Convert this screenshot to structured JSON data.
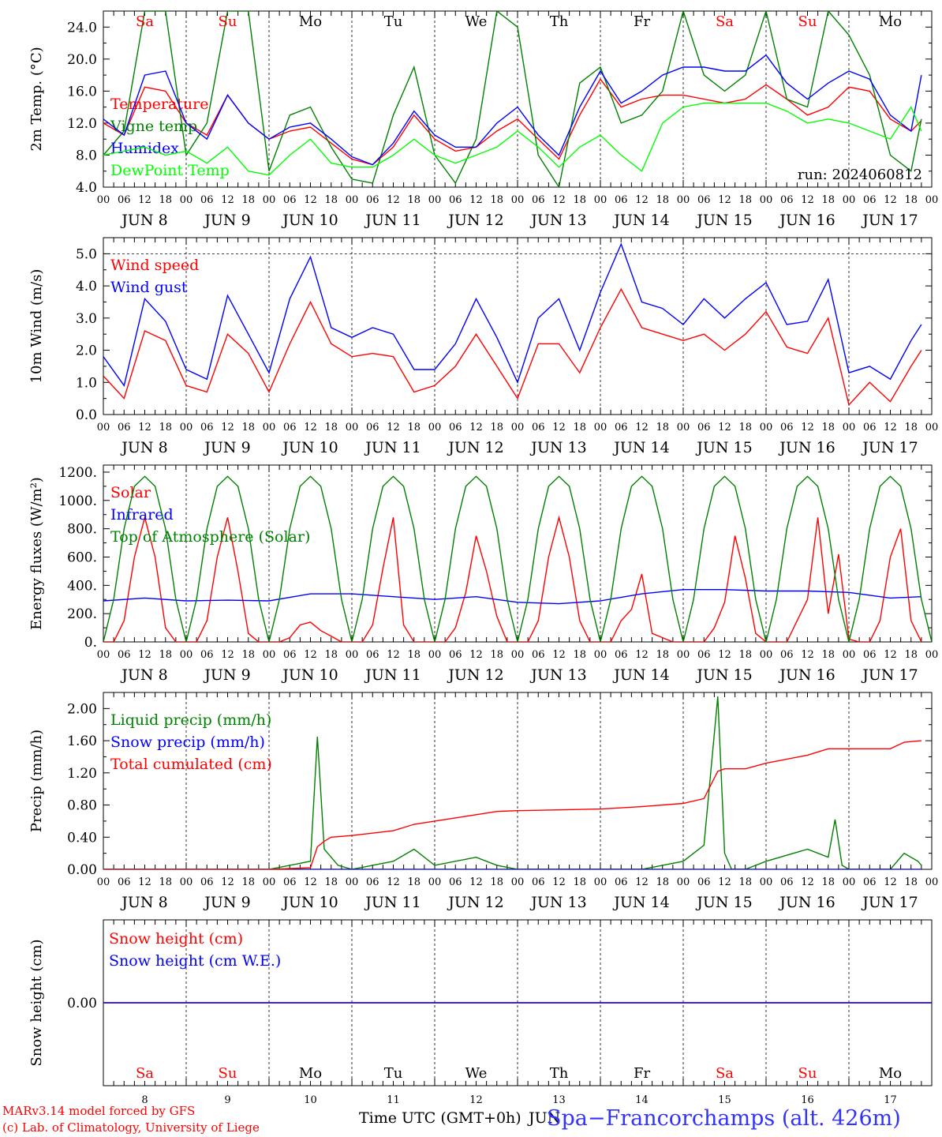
{
  "chart_data": [
    {
      "type": "line",
      "ylabel": "2m Temp. (°C)",
      "ylim": [
        4,
        26
      ],
      "yticks": [
        "4.0",
        "8.0",
        "12.0",
        "16.0",
        "20.0",
        "24.0"
      ],
      "run_label": "run: 2024060812",
      "series": [
        {
          "name": "Temperature",
          "color": "#ff0000",
          "x": [
            0,
            6,
            12,
            18,
            24,
            30,
            36,
            42,
            48,
            54,
            60,
            66,
            72,
            78,
            84,
            90,
            96,
            102,
            108,
            114,
            120,
            126,
            132,
            138,
            144,
            150,
            156,
            162,
            168,
            174,
            180,
            186,
            192,
            198,
            204,
            210,
            216,
            222,
            228,
            234,
            237
          ],
          "values": [
            12,
            10.5,
            16.5,
            16,
            12,
            10.5,
            15.5,
            12,
            10,
            11,
            11.5,
            9.5,
            7.5,
            6.8,
            9,
            13,
            10,
            8.5,
            9,
            11,
            12.5,
            10,
            7.5,
            13,
            17.5,
            14,
            15,
            15.5,
            15.5,
            15,
            14.5,
            15,
            16.8,
            15,
            13,
            14,
            16.5,
            16,
            12.5,
            11,
            12.3
          ]
        },
        {
          "name": "Vigne temp",
          "color": "#008000",
          "x": [
            0,
            6,
            12,
            18,
            24,
            30,
            36,
            42,
            48,
            54,
            60,
            66,
            72,
            78,
            84,
            90,
            96,
            102,
            108,
            114,
            120,
            126,
            132,
            138,
            144,
            150,
            156,
            162,
            168,
            174,
            180,
            186,
            192,
            198,
            204,
            210,
            216,
            222,
            228,
            234,
            237
          ],
          "values": [
            8,
            11,
            26,
            26,
            8,
            12,
            26,
            26,
            6,
            13,
            14,
            9,
            5,
            4.5,
            13,
            19,
            8,
            4.5,
            10,
            26,
            24,
            8,
            4,
            17,
            19,
            12,
            13,
            16,
            26,
            18,
            16,
            18,
            26,
            15,
            14,
            26,
            23,
            18,
            8,
            6,
            12.5
          ]
        },
        {
          "name": "Humidex",
          "color": "#0000ff",
          "x": [
            0,
            6,
            12,
            18,
            24,
            30,
            36,
            42,
            48,
            54,
            60,
            66,
            72,
            78,
            84,
            90,
            96,
            102,
            108,
            114,
            120,
            126,
            132,
            138,
            144,
            150,
            156,
            162,
            168,
            174,
            180,
            186,
            192,
            198,
            204,
            210,
            216,
            222,
            228,
            234,
            237
          ],
          "values": [
            12.5,
            10.5,
            18,
            18.5,
            12,
            10,
            15.5,
            12,
            10,
            11.5,
            12,
            10,
            7.8,
            6.8,
            9.5,
            13.5,
            10.5,
            9,
            9,
            12,
            14,
            10.5,
            8,
            14,
            18.5,
            14.5,
            16,
            18,
            19,
            19,
            18.5,
            18.5,
            20.5,
            17,
            15,
            17,
            18.5,
            17.5,
            13,
            11,
            18
          ]
        },
        {
          "name": "DewPoint Temp",
          "color": "#00ff00",
          "x": [
            0,
            6,
            12,
            18,
            24,
            30,
            36,
            42,
            48,
            54,
            60,
            66,
            72,
            78,
            84,
            90,
            96,
            102,
            108,
            114,
            120,
            126,
            132,
            138,
            144,
            150,
            156,
            162,
            168,
            174,
            180,
            186,
            192,
            198,
            204,
            210,
            216,
            222,
            228,
            234,
            237
          ],
          "values": [
            8,
            8.5,
            9,
            8,
            8.5,
            7,
            9,
            6,
            5.5,
            8,
            10,
            7,
            6.5,
            6.5,
            8,
            10,
            8,
            7,
            8,
            9,
            11,
            9,
            6.5,
            9,
            10.5,
            8,
            6,
            12,
            14,
            14.5,
            14.5,
            14.5,
            14.5,
            13.5,
            12,
            12.5,
            12,
            11,
            10,
            14,
            11
          ]
        }
      ]
    },
    {
      "type": "line",
      "ylabel": "10m Wind (m/s)",
      "ylim": [
        0,
        5.5
      ],
      "yticks": [
        "0.0",
        "1.0",
        "2.0",
        "3.0",
        "4.0",
        "5.0"
      ],
      "series": [
        {
          "name": "Wind speed",
          "color": "#ff0000",
          "x": [
            0,
            6,
            12,
            18,
            24,
            30,
            36,
            42,
            48,
            54,
            60,
            66,
            72,
            78,
            84,
            90,
            96,
            102,
            108,
            114,
            120,
            126,
            132,
            138,
            144,
            150,
            156,
            162,
            168,
            174,
            180,
            186,
            192,
            198,
            204,
            210,
            216,
            222,
            228,
            234,
            237
          ],
          "values": [
            1.2,
            0.5,
            2.6,
            2.3,
            0.9,
            0.7,
            2.5,
            1.9,
            0.7,
            2.2,
            3.5,
            2.2,
            1.8,
            1.9,
            1.8,
            0.7,
            0.9,
            1.5,
            2.5,
            1.5,
            0.5,
            2.2,
            2.2,
            1.3,
            2.7,
            3.9,
            2.7,
            2.5,
            2.3,
            2.5,
            2.0,
            2.5,
            3.2,
            2.1,
            1.9,
            3.0,
            0.3,
            1.0,
            0.4,
            1.5,
            2.0
          ]
        },
        {
          "name": "Wind gust",
          "color": "#0000ff",
          "x": [
            0,
            6,
            12,
            18,
            24,
            30,
            36,
            42,
            48,
            54,
            60,
            66,
            72,
            78,
            84,
            90,
            96,
            102,
            108,
            114,
            120,
            126,
            132,
            138,
            144,
            150,
            156,
            162,
            168,
            174,
            180,
            186,
            192,
            198,
            204,
            210,
            216,
            222,
            228,
            234,
            237
          ],
          "values": [
            1.8,
            0.9,
            3.6,
            2.9,
            1.4,
            1.1,
            3.7,
            2.5,
            1.3,
            3.6,
            4.9,
            2.7,
            2.4,
            2.7,
            2.5,
            1.4,
            1.4,
            2.2,
            3.6,
            2.4,
            1.0,
            3.0,
            3.6,
            2.0,
            3.8,
            5.3,
            3.5,
            3.3,
            2.8,
            3.6,
            3.0,
            3.6,
            4.1,
            2.8,
            2.9,
            4.2,
            1.3,
            1.5,
            1.1,
            2.3,
            2.8
          ]
        }
      ]
    },
    {
      "type": "line",
      "ylabel": "Energy fluxes (W/m²)",
      "ylim": [
        0,
        1250
      ],
      "yticks": [
        "0.",
        "200.",
        "400.",
        "600.",
        "800.",
        "1000.",
        "1200."
      ],
      "series": [
        {
          "name": "Solar",
          "color": "#ff0000",
          "x": [
            0,
            3,
            6,
            9,
            12,
            15,
            18,
            21,
            24,
            27,
            30,
            33,
            36,
            39,
            42,
            45,
            48,
            51,
            54,
            57,
            60,
            63,
            66,
            69,
            72,
            75,
            78,
            81,
            84,
            87,
            90,
            93,
            96,
            99,
            102,
            105,
            108,
            111,
            114,
            117,
            120,
            123,
            126,
            129,
            132,
            135,
            138,
            141,
            144,
            147,
            150,
            153,
            156,
            159,
            162,
            165,
            168,
            171,
            174,
            177,
            180,
            183,
            186,
            189,
            192,
            195,
            198,
            201,
            204,
            207,
            210,
            213,
            216,
            219,
            222,
            225,
            228,
            231,
            234,
            237
          ],
          "values": [
            0,
            0,
            150,
            600,
            880,
            600,
            100,
            0,
            0,
            0,
            150,
            600,
            880,
            500,
            60,
            0,
            0,
            0,
            30,
            120,
            140,
            80,
            40,
            0,
            0,
            0,
            120,
            520,
            880,
            120,
            0,
            0,
            0,
            0,
            100,
            350,
            750,
            500,
            180,
            0,
            0,
            0,
            150,
            600,
            880,
            600,
            150,
            0,
            0,
            0,
            150,
            230,
            480,
            60,
            30,
            0,
            0,
            0,
            0,
            100,
            280,
            750,
            450,
            60,
            0,
            0,
            0,
            150,
            300,
            880,
            200,
            620,
            20,
            0,
            0,
            150,
            600,
            800,
            150,
            0
          ]
        },
        {
          "name": "Infrared",
          "color": "#0000ff",
          "x": [
            0,
            12,
            24,
            36,
            48,
            60,
            72,
            84,
            96,
            108,
            120,
            132,
            144,
            156,
            168,
            180,
            192,
            204,
            216,
            228,
            237
          ],
          "values": [
            290,
            310,
            290,
            295,
            290,
            340,
            340,
            320,
            300,
            320,
            280,
            270,
            290,
            340,
            370,
            370,
            360,
            360,
            350,
            310,
            320
          ]
        },
        {
          "name": "Top of Atmosphere (Solar)",
          "color": "#008000",
          "x": [
            0,
            3,
            6,
            9,
            12,
            15,
            18,
            21,
            24
          ],
          "values": [
            0,
            300,
            800,
            1100,
            1170,
            1100,
            800,
            300,
            0
          ],
          "repeat_daily": true
        }
      ]
    },
    {
      "type": "line",
      "ylabel": "Precip (mm/h)",
      "ylim": [
        0,
        2.2
      ],
      "yticks": [
        "0.00",
        "0.40",
        "0.80",
        "1.20",
        "1.60",
        "2.00"
      ],
      "series": [
        {
          "name": "Liquid precip (mm/h)",
          "color": "#008000",
          "x": [
            0,
            24,
            48,
            60,
            62,
            64,
            66,
            68,
            72,
            84,
            90,
            96,
            108,
            114,
            120,
            132,
            144,
            156,
            168,
            174,
            178,
            180,
            182,
            186,
            192,
            204,
            210,
            212,
            214,
            216,
            228,
            232,
            236,
            237
          ],
          "values": [
            0,
            0,
            0,
            0.1,
            1.65,
            0.25,
            0.15,
            0.05,
            0,
            0.1,
            0.25,
            0.05,
            0.15,
            0.05,
            0,
            0,
            0,
            0,
            0.1,
            0.3,
            2.15,
            0.2,
            0,
            0,
            0.1,
            0.25,
            0.15,
            0.62,
            0.05,
            0,
            0,
            0.2,
            0.1,
            0.05
          ]
        },
        {
          "name": "Snow precip (mm/h)",
          "color": "#0000ff",
          "x": [
            0,
            237
          ],
          "values": [
            0,
            0
          ]
        },
        {
          "name": "Total cumulated (cm)",
          "color": "#ff0000",
          "x": [
            0,
            48,
            60,
            62,
            64,
            66,
            72,
            84,
            90,
            96,
            108,
            114,
            120,
            132,
            144,
            156,
            168,
            174,
            176,
            178,
            180,
            186,
            192,
            204,
            210,
            216,
            228,
            232,
            237
          ],
          "values": [
            0,
            0,
            0.02,
            0.28,
            0.35,
            0.4,
            0.42,
            0.48,
            0.56,
            0.6,
            0.68,
            0.72,
            0.73,
            0.74,
            0.75,
            0.78,
            0.82,
            0.88,
            1.05,
            1.22,
            1.25,
            1.25,
            1.32,
            1.42,
            1.5,
            1.5,
            1.5,
            1.58,
            1.6
          ]
        }
      ]
    },
    {
      "type": "line",
      "ylabel": "Snow height (cm)",
      "ylim": [
        -1,
        1
      ],
      "yticks": [
        "0.00"
      ],
      "series": [
        {
          "name": "Snow height (cm)",
          "color": "#ff0000",
          "x": [
            0,
            240
          ],
          "values": [
            0,
            0
          ]
        },
        {
          "name": "Snow height (cm W.E.)",
          "color": "#0000ff",
          "x": [
            0,
            240
          ],
          "values": [
            0,
            0
          ]
        }
      ]
    }
  ],
  "days": [
    {
      "name": "Sa",
      "date": "JUN  8",
      "num": "8",
      "weekend": true
    },
    {
      "name": "Su",
      "date": "JUN  9",
      "num": "9",
      "weekend": true
    },
    {
      "name": "Mo",
      "date": "JUN 10",
      "num": "10",
      "weekend": false
    },
    {
      "name": "Tu",
      "date": "JUN 11",
      "num": "11",
      "weekend": false
    },
    {
      "name": "We",
      "date": "JUN 12",
      "num": "12",
      "weekend": false
    },
    {
      "name": "Th",
      "date": "JUN 13",
      "num": "13",
      "weekend": false
    },
    {
      "name": "Fr",
      "date": "JUN 14",
      "num": "14",
      "weekend": false
    },
    {
      "name": "Sa",
      "date": "JUN 15",
      "num": "15",
      "weekend": true
    },
    {
      "name": "Su",
      "date": "JUN 16",
      "num": "16",
      "weekend": true
    },
    {
      "name": "Mo",
      "date": "JUN 17",
      "num": "17",
      "weekend": false
    }
  ],
  "hour_ticks": [
    "00",
    "06",
    "12",
    "18"
  ],
  "hour_end": "00",
  "x_axis_title": "Time UTC (GMT+0h)",
  "x_month": "JUN",
  "footer": {
    "line1": "MARv3.14 model forced by GFS",
    "line2": "(c) Lab. of Climatology, University of Liege"
  },
  "station": "Spa−Francorchamps (alt. 426m)"
}
